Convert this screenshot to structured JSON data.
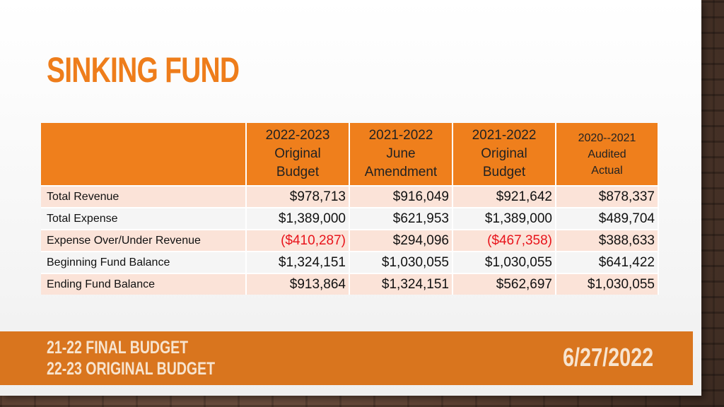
{
  "title": "SINKING FUND",
  "table": {
    "headers": [
      {
        "l1": "2022-2023",
        "l2": "Original",
        "l3": "Budget"
      },
      {
        "l1": "2021-2022",
        "l2": "June",
        "l3": "Amendment"
      },
      {
        "l1": "2021-2022",
        "l2": "Original",
        "l3": "Budget"
      },
      {
        "l1": "2020--2021",
        "l2": "Audited",
        "l3": "Actual"
      }
    ],
    "rows": [
      {
        "label": "Total Revenue",
        "values": [
          "$978,713",
          "$916,049",
          "$921,642",
          "$878,337"
        ]
      },
      {
        "label": "Total Expense",
        "values": [
          "$1,389,000",
          "$621,953",
          "$1,389,000",
          "$489,704"
        ]
      },
      {
        "label": "Expense Over/Under Revenue",
        "values": [
          "($410,287)",
          "$294,096",
          "($467,358)",
          "$388,633"
        ]
      },
      {
        "label": "Beginning Fund Balance",
        "values": [
          "$1,324,151",
          "$1,030,055",
          "$1,030,055",
          "$641,422"
        ]
      },
      {
        "label": "Ending Fund Balance",
        "values": [
          "$913,864",
          "$1,324,151",
          "$562,697",
          "$1,030,055"
        ]
      }
    ]
  },
  "footer": {
    "line1": "21-22 FINAL BUDGET",
    "line2": "22-23 ORIGINAL BUDGET",
    "date": "6/27/2022"
  },
  "colors": {
    "accent": "#ee7d1b",
    "negative": "#e8141b",
    "footer_bg": "#d9751e"
  }
}
